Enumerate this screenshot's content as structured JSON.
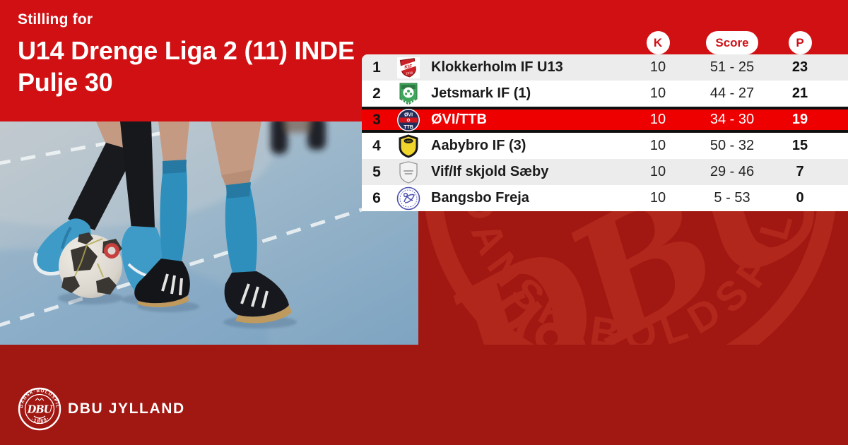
{
  "header": {
    "eyebrow": "Stilling for",
    "title_line1": "U14 Drenge Liga 2 (11) INDE",
    "title_line2": "Pulje 30"
  },
  "table": {
    "columns": {
      "k": "K",
      "score": "Score",
      "p": "P"
    },
    "rows": [
      {
        "rank": "1",
        "team": "Klokkerholm IF U13",
        "k": "10",
        "score": "51 - 25",
        "p": "23",
        "highlight": false,
        "logo": "klokkerholm-if-crest"
      },
      {
        "rank": "2",
        "team": "Jetsmark IF (1)",
        "k": "10",
        "score": "44 - 27",
        "p": "21",
        "highlight": false,
        "logo": "jetsmark-if-crest"
      },
      {
        "rank": "3",
        "team": "ØVI/TTB",
        "k": "10",
        "score": "34 - 30",
        "p": "19",
        "highlight": true,
        "logo": "ovi-ttb-crest"
      },
      {
        "rank": "4",
        "team": "Aabybro IF (3)",
        "k": "10",
        "score": "50 - 32",
        "p": "15",
        "highlight": false,
        "logo": "aabybro-if-crest"
      },
      {
        "rank": "5",
        "team": "Vif/If skjold Sæby",
        "k": "10",
        "score": "29 - 46",
        "p": "7",
        "highlight": false,
        "logo": "vif-skjold-saeby-crest"
      },
      {
        "rank": "6",
        "team": "Bangsbo Freja",
        "k": "10",
        "score": "5 - 53",
        "p": "0",
        "highlight": false,
        "logo": "bangsbo-freja-crest"
      }
    ]
  },
  "footer": {
    "brand": "DBU JYLLAND"
  },
  "watermark": {
    "monogram": "DBU",
    "ring_text": "DANSK BOLDSPIL-UNION"
  },
  "crest_small": {
    "ring_text": "DANSK·BOLDSPIL·UNION",
    "year": "· 1889 ·",
    "monogram": "DBU"
  },
  "colors": {
    "background_dark_red": "#a11712",
    "header_red": "#d11013",
    "highlight_red": "#ee0000",
    "pill_text_red": "#cf1016",
    "row_gray": "#ececec",
    "row_white": "#ffffff",
    "watermark_red": "#b2271b"
  }
}
